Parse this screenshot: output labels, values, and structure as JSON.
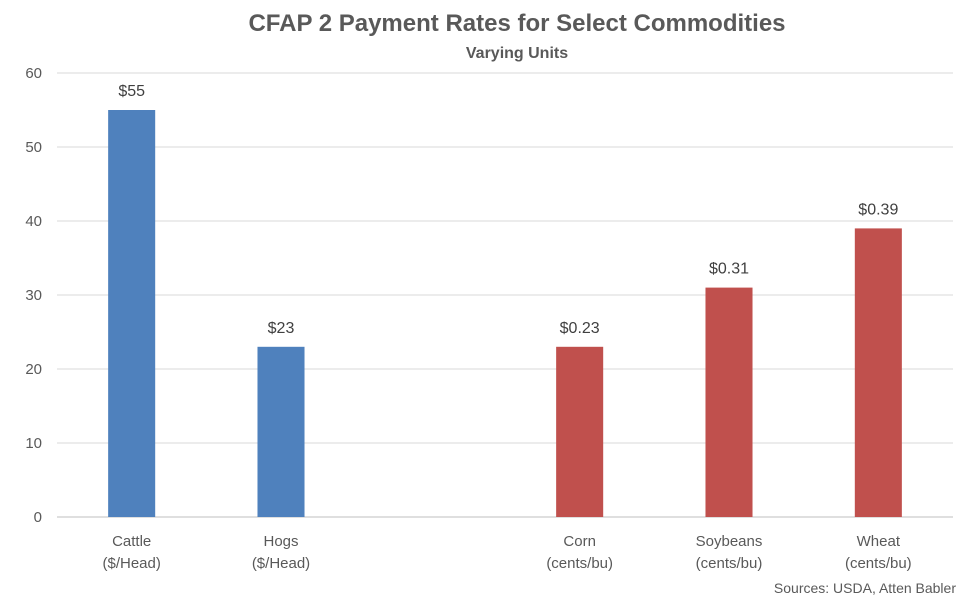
{
  "chart_data": {
    "type": "bar",
    "title": "CFAP 2 Payment Rates for Select Commodities",
    "subtitle": "Varying Units",
    "source": "Sources: USDA, Atten Babler",
    "ylim": [
      0,
      60
    ],
    "yticks": [
      0,
      10,
      20,
      30,
      40,
      50,
      60
    ],
    "grid": true,
    "bars": [
      {
        "category": [
          "Cattle",
          "($/Head)"
        ],
        "value": 55,
        "label": "$55",
        "color": "#4f81bd"
      },
      {
        "category": [
          "Hogs",
          "($/Head)"
        ],
        "value": 23,
        "label": "$23",
        "color": "#4f81bd"
      },
      {
        "category": [
          "",
          ""
        ],
        "value": null,
        "label": "",
        "color": ""
      },
      {
        "category": [
          "Corn",
          "(cents/bu)"
        ],
        "value": 23,
        "label": "$0.23",
        "color": "#c0504d"
      },
      {
        "category": [
          "Soybeans",
          "(cents/bu)"
        ],
        "value": 31,
        "label": "$0.31",
        "color": "#c0504d"
      },
      {
        "category": [
          "Wheat",
          "(cents/bu)"
        ],
        "value": 39,
        "label": "$0.39",
        "color": "#c0504d"
      }
    ]
  }
}
